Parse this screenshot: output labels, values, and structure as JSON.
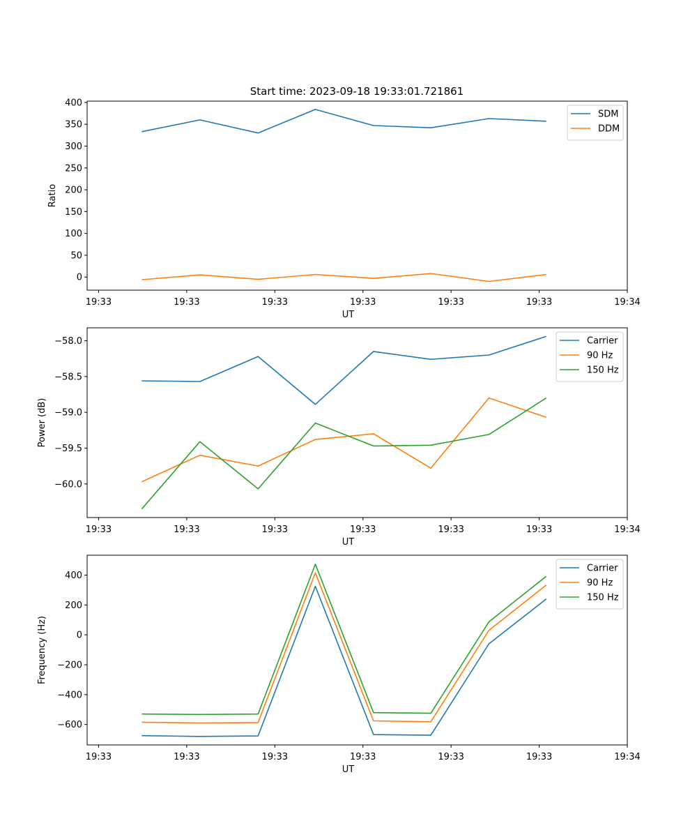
{
  "figure_title": "Start time: 2023-09-18 19:33:01.721861",
  "chart_data": [
    {
      "type": "line",
      "title": "Start time: 2023-09-18 19:33:01.721861",
      "xlabel": "UT",
      "ylabel": "Ratio",
      "x_seconds": [
        4.9,
        11.5,
        18.1,
        24.6,
        31.2,
        37.7,
        44.3,
        50.8
      ],
      "xlim_seconds": [
        -1.3,
        60.0
      ],
      "x_ticks_seconds": [
        0,
        10,
        20,
        30,
        40,
        50,
        60
      ],
      "x_tick_labels": [
        "19:33",
        "19:33",
        "19:33",
        "19:33",
        "19:33",
        "19:33",
        "19:34"
      ],
      "ylim": [
        -30,
        403
      ],
      "y_ticks": [
        0,
        50,
        100,
        150,
        200,
        250,
        300,
        350,
        400
      ],
      "y_tick_labels": [
        "0",
        "50",
        "100",
        "150",
        "200",
        "250",
        "300",
        "350",
        "400"
      ],
      "legend": "top-right",
      "grid": false,
      "series": [
        {
          "name": "SDM",
          "color": "#1f77b4",
          "values": [
            333,
            360,
            330,
            384,
            347,
            342,
            363,
            357
          ]
        },
        {
          "name": "DDM",
          "color": "#ff7f0e",
          "values": [
            -6,
            5,
            -5,
            6,
            -3,
            8,
            -10,
            6
          ]
        }
      ]
    },
    {
      "type": "line",
      "title": "",
      "xlabel": "UT",
      "ylabel": "Power (dB)",
      "x_seconds": [
        4.9,
        11.5,
        18.1,
        24.6,
        31.2,
        37.7,
        44.3,
        50.8
      ],
      "xlim_seconds": [
        -1.3,
        60.0
      ],
      "x_ticks_seconds": [
        0,
        10,
        20,
        30,
        40,
        50,
        60
      ],
      "x_tick_labels": [
        "19:33",
        "19:33",
        "19:33",
        "19:33",
        "19:33",
        "19:33",
        "19:34"
      ],
      "ylim": [
        -60.47,
        -57.82
      ],
      "y_ticks": [
        -60.0,
        -59.5,
        -59.0,
        -58.5,
        -58.0
      ],
      "y_tick_labels": [
        "−60.0",
        "−59.5",
        "−59.0",
        "−58.5",
        "−58.0"
      ],
      "legend": "top-right",
      "grid": false,
      "series": [
        {
          "name": "Carrier",
          "color": "#1f77b4",
          "values": [
            -58.56,
            -58.57,
            -58.22,
            -58.89,
            -58.15,
            -58.26,
            -58.2,
            -57.94
          ]
        },
        {
          "name": "90 Hz",
          "color": "#ff7f0e",
          "values": [
            -59.97,
            -59.6,
            -59.75,
            -59.38,
            -59.3,
            -59.78,
            -58.8,
            -59.07
          ]
        },
        {
          "name": "150 Hz",
          "color": "#2ca02c",
          "values": [
            -60.35,
            -59.41,
            -60.07,
            -59.15,
            -59.47,
            -59.46,
            -59.31,
            -58.8
          ]
        }
      ]
    },
    {
      "type": "line",
      "title": "",
      "xlabel": "UT",
      "ylabel": "Frequency (Hz)",
      "x_seconds": [
        4.9,
        11.5,
        18.1,
        24.6,
        31.2,
        37.7,
        44.3,
        50.8
      ],
      "xlim_seconds": [
        -1.3,
        60.0
      ],
      "x_ticks_seconds": [
        0,
        10,
        20,
        30,
        40,
        50,
        60
      ],
      "x_tick_labels": [
        "19:33",
        "19:33",
        "19:33",
        "19:33",
        "19:33",
        "19:33",
        "19:34"
      ],
      "ylim": [
        -737,
        533
      ],
      "y_ticks": [
        -600,
        -400,
        -200,
        0,
        200,
        400
      ],
      "y_tick_labels": [
        "−600",
        "−400",
        "−200",
        "0",
        "200",
        "400"
      ],
      "legend": "top-right",
      "grid": false,
      "series": [
        {
          "name": "Carrier",
          "color": "#1f77b4",
          "values": [
            -675,
            -680,
            -677,
            325,
            -668,
            -672,
            -60,
            240
          ]
        },
        {
          "name": "90 Hz",
          "color": "#ff7f0e",
          "values": [
            -585,
            -590,
            -587,
            415,
            -576,
            -582,
            30,
            333
          ]
        },
        {
          "name": "150 Hz",
          "color": "#2ca02c",
          "values": [
            -530,
            -533,
            -530,
            473,
            -521,
            -525,
            87,
            392
          ]
        }
      ]
    }
  ]
}
